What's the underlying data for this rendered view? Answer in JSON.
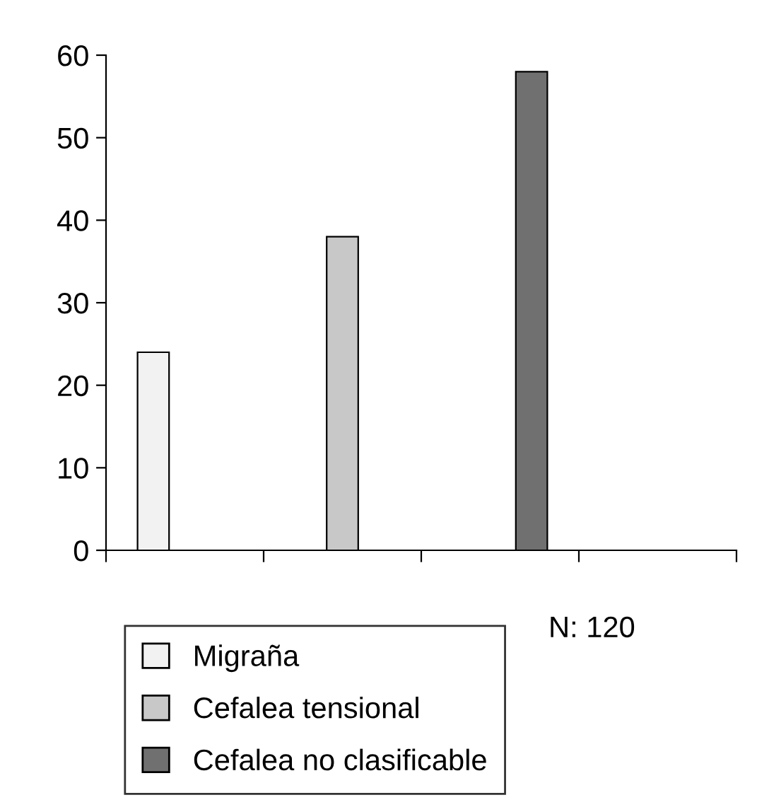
{
  "chart_data": {
    "type": "bar",
    "categories": [
      null,
      null,
      null,
      null
    ],
    "series": [
      {
        "name": "Migraña",
        "color": "#f2f2f2",
        "values": [
          24,
          null,
          null,
          null
        ]
      },
      {
        "name": "Cefalea tensional",
        "color": "#c8c8c8",
        "values": [
          null,
          38,
          null,
          null
        ]
      },
      {
        "name": "Cefalea no clasificable",
        "color": "#707070",
        "values": [
          null,
          null,
          58,
          null
        ]
      }
    ],
    "ylim": [
      0,
      60
    ],
    "yticks": [
      0,
      10,
      20,
      30,
      40,
      50,
      60
    ],
    "grid": false,
    "legend": "bottom",
    "annotations": [
      "N: 120"
    ]
  }
}
